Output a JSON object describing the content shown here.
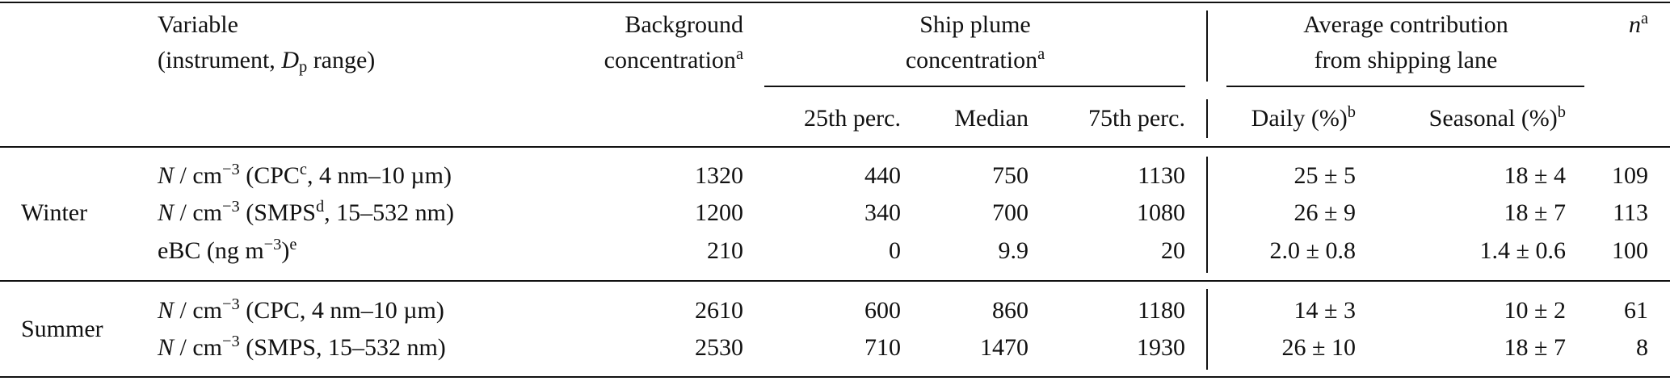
{
  "table": {
    "header": {
      "variable": [
        [
          "Variable"
        ],
        [
          "(instrument, ",
          {
            "i": "D"
          },
          {
            "sub": "p"
          },
          " range)"
        ]
      ],
      "background": [
        [
          "Background"
        ],
        [
          "concentration",
          {
            "sup": "a"
          }
        ]
      ],
      "ship_plume": [
        [
          "Ship plume"
        ],
        [
          "concentration",
          {
            "sup": "a"
          }
        ]
      ],
      "average": [
        [
          "Average contribution"
        ],
        [
          "from shipping lane"
        ]
      ],
      "n": [
        {
          "i": "n"
        },
        {
          "sup": "a"
        }
      ],
      "p25": "25th perc.",
      "median": "Median",
      "p75": "75th perc.",
      "daily": [
        "Daily (%)",
        {
          "sup": "b"
        }
      ],
      "seasonal": [
        "Seasonal (%)",
        {
          "sup": "b"
        }
      ]
    },
    "groups": [
      {
        "season": "Winter",
        "rows": [
          {
            "variable": [
              {
                "i": "N"
              },
              " / cm",
              {
                "sup": "−3"
              },
              " (CPC",
              {
                "sup": "c"
              },
              ", 4 nm–10 µm)"
            ],
            "background": 1320,
            "p25": 440,
            "median": 750,
            "p75": 1130,
            "daily": "25 ± 5",
            "seasonal": "18 ± 4",
            "n": 109
          },
          {
            "variable": [
              {
                "i": "N"
              },
              " / cm",
              {
                "sup": "−3"
              },
              " (SMPS",
              {
                "sup": "d"
              },
              ", 15–532 nm)"
            ],
            "background": 1200,
            "p25": 340,
            "median": 700,
            "p75": 1080,
            "daily": "26 ± 9",
            "seasonal": "18 ± 7",
            "n": 113
          },
          {
            "variable": [
              "eBC (ng m",
              {
                "sup": "−3"
              },
              ")",
              {
                "sup": "e"
              }
            ],
            "background": 210,
            "p25": 0,
            "median": 9.9,
            "p75": 20,
            "daily": "2.0 ± 0.8",
            "seasonal": "1.4 ± 0.6",
            "n": 100
          }
        ]
      },
      {
        "season": "Summer",
        "rows": [
          {
            "variable": [
              {
                "i": "N"
              },
              " / cm",
              {
                "sup": "−3"
              },
              " (CPC, 4 nm–10 µm)"
            ],
            "background": 2610,
            "p25": 600,
            "median": 860,
            "p75": 1180,
            "daily": "14 ± 3",
            "seasonal": "10 ± 2",
            "n": 61
          },
          {
            "variable": [
              {
                "i": "N"
              },
              " / cm",
              {
                "sup": "−3"
              },
              " (SMPS, 15–532 nm)"
            ],
            "background": 2530,
            "p25": 710,
            "median": 1470,
            "p75": 1930,
            "daily": "26 ± 10",
            "seasonal": "18 ± 7",
            "n": 8
          }
        ]
      }
    ]
  }
}
